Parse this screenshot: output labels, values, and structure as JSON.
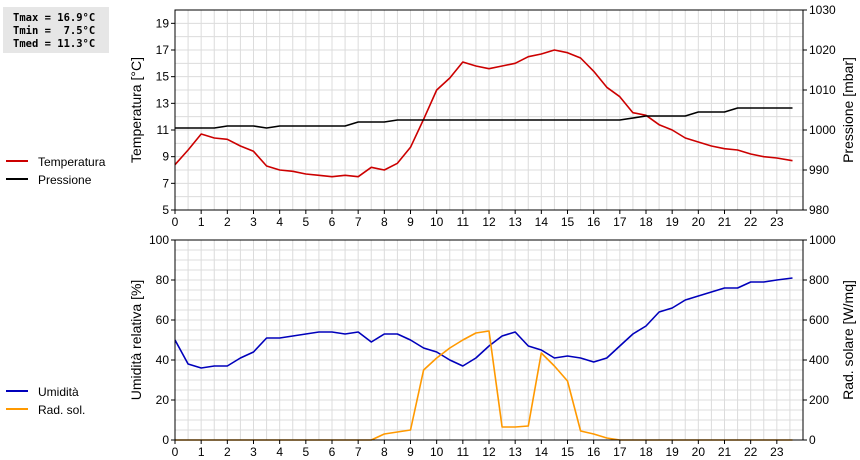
{
  "stats": {
    "tmax": "Tmax = 16.9°C",
    "tmin": "Tmin =  7.5°C",
    "tmed": "Tmed = 11.3°C"
  },
  "chart_data": [
    {
      "type": "line",
      "ylabel": "Temperatura [°C]",
      "y2label": "Pressione [mbar]",
      "xlim": [
        0,
        24
      ],
      "ylim": [
        5,
        20
      ],
      "y2lim": [
        980,
        1030
      ],
      "x_ticks": [
        "0",
        "1",
        "2",
        "3",
        "4",
        "5",
        "6",
        "7",
        "8",
        "9",
        "10",
        "11",
        "12",
        "13",
        "14",
        "15",
        "16",
        "17",
        "18",
        "19",
        "20",
        "21",
        "22",
        "23"
      ],
      "y_ticks": [
        "5",
        "7",
        "9",
        "11",
        "13",
        "15",
        "17",
        "19"
      ],
      "y2_ticks": [
        "980",
        "990",
        "1000",
        "1010",
        "1020",
        "1030"
      ],
      "grid": true,
      "legend_position": "left",
      "series": [
        {
          "name": "Temperatura",
          "color": "#cc0000",
          "axis": "left",
          "x": [
            0,
            0.5,
            1,
            1.5,
            2,
            2.5,
            3,
            3.5,
            4,
            4.5,
            5,
            5.5,
            6,
            6.5,
            7,
            7.5,
            8,
            8.5,
            9,
            9.5,
            10,
            10.5,
            11,
            11.5,
            12,
            12.5,
            13,
            13.5,
            14,
            14.5,
            15,
            15.5,
            16,
            16.5,
            17,
            17.5,
            18,
            18.5,
            19,
            19.5,
            20,
            20.5,
            21,
            21.5,
            22,
            22.5,
            23,
            23.6
          ],
          "values": [
            8.4,
            9.5,
            10.7,
            10.4,
            10.3,
            9.8,
            9.4,
            8.3,
            8.0,
            7.9,
            7.7,
            7.6,
            7.5,
            7.6,
            7.5,
            8.2,
            8.0,
            8.5,
            9.7,
            11.8,
            14.0,
            14.9,
            16.1,
            15.8,
            15.6,
            15.8,
            16.0,
            16.5,
            16.7,
            17.0,
            16.8,
            16.4,
            15.4,
            14.2,
            13.5,
            12.3,
            12.1,
            11.4,
            11.0,
            10.4,
            10.1,
            9.8,
            9.6,
            9.5,
            9.2,
            9.0,
            8.9,
            8.7
          ]
        },
        {
          "name": "Pressione",
          "color": "#000000",
          "axis": "right",
          "x": [
            0,
            1,
            1.5,
            2,
            3,
            3.5,
            4,
            6.5,
            7,
            8,
            8.5,
            17,
            18,
            19.5,
            20,
            21,
            21.5,
            22,
            23.6
          ],
          "values": [
            1000.5,
            1000.5,
            1000.5,
            1001.0,
            1001.0,
            1000.5,
            1001.0,
            1001.0,
            1002.0,
            1002.0,
            1002.5,
            1002.5,
            1003.5,
            1003.5,
            1004.5,
            1004.5,
            1005.5,
            1005.5,
            1005.5
          ]
        }
      ]
    },
    {
      "type": "line",
      "ylabel": "Umidità relativa [%]",
      "y2label": "Rad. solare [W/mq]",
      "xlim": [
        0,
        24
      ],
      "ylim": [
        0,
        100
      ],
      "y2lim": [
        0,
        1000
      ],
      "x_ticks": [
        "0",
        "1",
        "2",
        "3",
        "4",
        "5",
        "6",
        "7",
        "8",
        "9",
        "10",
        "11",
        "12",
        "13",
        "14",
        "15",
        "16",
        "17",
        "18",
        "19",
        "20",
        "21",
        "22",
        "23"
      ],
      "y_ticks": [
        "0",
        "20",
        "40",
        "60",
        "80",
        "100"
      ],
      "y2_ticks": [
        "0",
        "200",
        "400",
        "600",
        "800",
        "1000"
      ],
      "grid": true,
      "legend_position": "left",
      "series": [
        {
          "name": "Umidità",
          "color": "#0000bb",
          "axis": "left",
          "x": [
            0,
            0.5,
            1,
            1.5,
            2,
            2.5,
            3,
            3.5,
            4,
            4.5,
            5,
            5.5,
            6,
            6.5,
            7,
            7.5,
            8,
            8.5,
            9,
            9.5,
            10,
            10.5,
            11,
            11.5,
            12,
            12.5,
            13,
            13.5,
            14,
            14.5,
            15,
            15.5,
            16,
            16.5,
            17,
            17.5,
            18,
            18.5,
            19,
            19.5,
            20,
            20.5,
            21,
            21.5,
            22,
            22.5,
            23,
            23.6
          ],
          "values": [
            50,
            38,
            36,
            37,
            37,
            41,
            44,
            51,
            51,
            52,
            53,
            54,
            54,
            53,
            54,
            49,
            53,
            53,
            50,
            46,
            44,
            40,
            37,
            41,
            47,
            52,
            54,
            47,
            45,
            41,
            42,
            41,
            39,
            41,
            47,
            53,
            57,
            64,
            66,
            70,
            72,
            74,
            76,
            76,
            79,
            79,
            80,
            81
          ]
        },
        {
          "name": "Rad. sol.",
          "color": "#ff9900",
          "axis": "right",
          "x": [
            0,
            7.5,
            8,
            9,
            9.5,
            10,
            10.5,
            11,
            11.5,
            12,
            12.5,
            13,
            13.5,
            14,
            14.5,
            15,
            15.5,
            16,
            16.5,
            17,
            17.5,
            23.6
          ],
          "values": [
            0,
            0,
            30,
            50,
            350,
            410,
            460,
            500,
            535,
            545,
            65,
            65,
            70,
            435,
            370,
            295,
            45,
            30,
            10,
            0,
            0,
            0
          ]
        }
      ]
    }
  ]
}
